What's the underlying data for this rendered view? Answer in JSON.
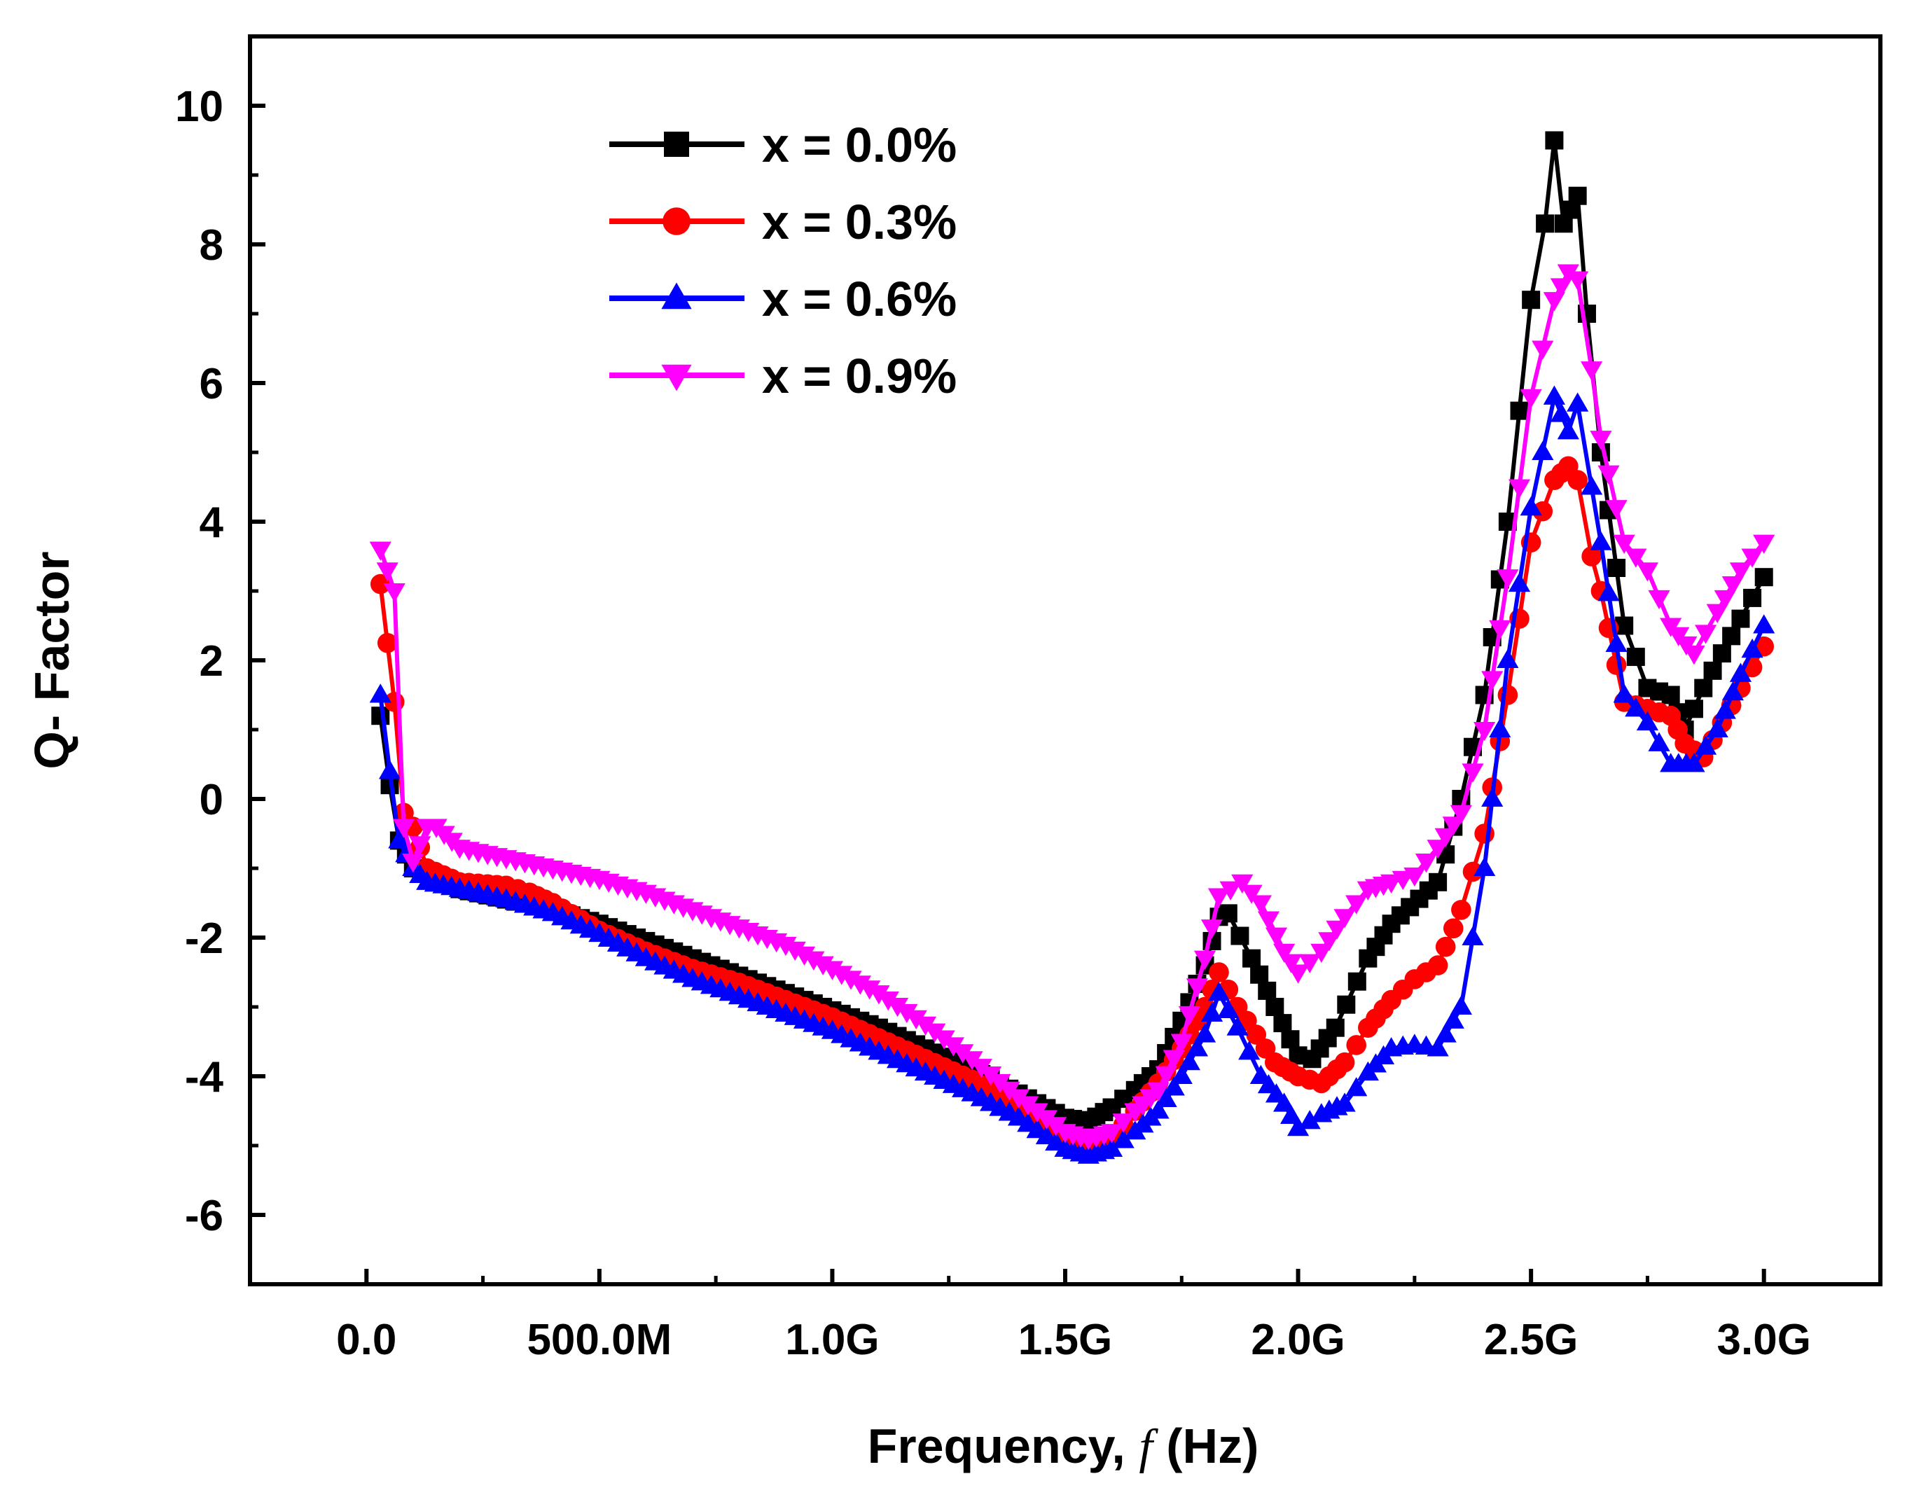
{
  "chart_data": {
    "type": "line",
    "title": "",
    "xlabel": "Frequency, ",
    "xlabel_var": "f",
    "xlabel_unit": " (Hz)",
    "ylabel": "Q- Factor",
    "xlim": [
      -0.25,
      3.25
    ],
    "ylim": [
      -7,
      11
    ],
    "x_ticks": [
      0.0,
      0.5,
      1.0,
      1.5,
      2.0,
      2.5,
      3.0
    ],
    "x_tick_labels": [
      "0.0",
      "500.0M",
      "1.0G",
      "1.5G",
      "2.0G",
      "2.5G",
      "3.0G"
    ],
    "x_unit_note": "x values in GHz",
    "y_ticks": [
      -6,
      -4,
      -2,
      0,
      2,
      4,
      6,
      8,
      10
    ],
    "y_tick_labels": [
      "-6",
      "-4",
      "-2",
      "0",
      "2",
      "4",
      "6",
      "8",
      "10"
    ],
    "grid": false,
    "legend_position": "top-left",
    "series": [
      {
        "name": "x = 0.0%",
        "color": "#000000",
        "marker": "square",
        "points": [
          [
            0.03,
            1.2
          ],
          [
            0.05,
            0.2
          ],
          [
            0.07,
            -0.6
          ],
          [
            0.1,
            -1.0
          ],
          [
            0.15,
            -1.1
          ],
          [
            0.2,
            -1.3
          ],
          [
            0.3,
            -1.45
          ],
          [
            0.4,
            -1.6
          ],
          [
            0.5,
            -1.8
          ],
          [
            0.6,
            -2.05
          ],
          [
            0.7,
            -2.3
          ],
          [
            0.8,
            -2.55
          ],
          [
            0.9,
            -2.8
          ],
          [
            1.0,
            -3.05
          ],
          [
            1.1,
            -3.3
          ],
          [
            1.2,
            -3.6
          ],
          [
            1.3,
            -3.9
          ],
          [
            1.4,
            -4.25
          ],
          [
            1.5,
            -4.6
          ],
          [
            1.55,
            -4.65
          ],
          [
            1.6,
            -4.45
          ],
          [
            1.65,
            -4.2
          ],
          [
            1.7,
            -3.9
          ],
          [
            1.75,
            -3.2
          ],
          [
            1.8,
            -2.4
          ],
          [
            1.83,
            -1.7
          ],
          [
            1.85,
            -1.65
          ],
          [
            1.9,
            -2.3
          ],
          [
            1.95,
            -3.0
          ],
          [
            2.0,
            -3.7
          ],
          [
            2.03,
            -3.75
          ],
          [
            2.08,
            -3.3
          ],
          [
            2.15,
            -2.3
          ],
          [
            2.2,
            -1.8
          ],
          [
            2.3,
            -1.2
          ],
          [
            2.35,
            0.0
          ],
          [
            2.4,
            1.5
          ],
          [
            2.45,
            4.0
          ],
          [
            2.5,
            7.2
          ],
          [
            2.53,
            8.3
          ],
          [
            2.55,
            9.5
          ],
          [
            2.57,
            8.3
          ],
          [
            2.6,
            8.7
          ],
          [
            2.62,
            7.0
          ],
          [
            2.65,
            5.0
          ],
          [
            2.7,
            2.5
          ],
          [
            2.75,
            1.6
          ],
          [
            2.8,
            1.5
          ],
          [
            2.83,
            1.0
          ],
          [
            2.87,
            1.6
          ],
          [
            2.95,
            2.6
          ],
          [
            3.0,
            3.2
          ]
        ]
      },
      {
        "name": "x = 0.3%",
        "color": "#ff0000",
        "marker": "circle",
        "points": [
          [
            0.03,
            3.1
          ],
          [
            0.06,
            1.4
          ],
          [
            0.08,
            -0.2
          ],
          [
            0.1,
            -0.4
          ],
          [
            0.13,
            -1.0
          ],
          [
            0.2,
            -1.2
          ],
          [
            0.3,
            -1.25
          ],
          [
            0.35,
            -1.35
          ],
          [
            0.4,
            -1.5
          ],
          [
            0.5,
            -1.9
          ],
          [
            0.6,
            -2.2
          ],
          [
            0.7,
            -2.45
          ],
          [
            0.8,
            -2.65
          ],
          [
            0.9,
            -2.9
          ],
          [
            1.0,
            -3.15
          ],
          [
            1.1,
            -3.45
          ],
          [
            1.2,
            -3.75
          ],
          [
            1.3,
            -4.05
          ],
          [
            1.4,
            -4.45
          ],
          [
            1.5,
            -4.9
          ],
          [
            1.55,
            -5.0
          ],
          [
            1.6,
            -4.9
          ],
          [
            1.65,
            -4.5
          ],
          [
            1.7,
            -4.1
          ],
          [
            1.75,
            -3.6
          ],
          [
            1.8,
            -3.0
          ],
          [
            1.83,
            -2.5
          ],
          [
            1.87,
            -3.0
          ],
          [
            1.95,
            -3.8
          ],
          [
            2.0,
            -4.0
          ],
          [
            2.05,
            -4.1
          ],
          [
            2.1,
            -3.8
          ],
          [
            2.15,
            -3.3
          ],
          [
            2.2,
            -2.9
          ],
          [
            2.25,
            -2.6
          ],
          [
            2.3,
            -2.4
          ],
          [
            2.35,
            -1.6
          ],
          [
            2.4,
            -0.5
          ],
          [
            2.45,
            1.5
          ],
          [
            2.5,
            3.7
          ],
          [
            2.55,
            4.6
          ],
          [
            2.58,
            4.8
          ],
          [
            2.6,
            4.6
          ],
          [
            2.63,
            3.5
          ],
          [
            2.65,
            3.0
          ],
          [
            2.7,
            1.4
          ],
          [
            2.75,
            1.3
          ],
          [
            2.8,
            1.2
          ],
          [
            2.83,
            0.8
          ],
          [
            2.87,
            0.6
          ],
          [
            2.95,
            1.6
          ],
          [
            3.0,
            2.2
          ]
        ]
      },
      {
        "name": "x = 0.6%",
        "color": "#0000ff",
        "marker": "triangle-up",
        "points": [
          [
            0.03,
            1.5
          ],
          [
            0.05,
            0.4
          ],
          [
            0.07,
            -0.6
          ],
          [
            0.1,
            -1.0
          ],
          [
            0.13,
            -1.2
          ],
          [
            0.2,
            -1.3
          ],
          [
            0.3,
            -1.45
          ],
          [
            0.4,
            -1.65
          ],
          [
            0.5,
            -1.95
          ],
          [
            0.6,
            -2.3
          ],
          [
            0.7,
            -2.6
          ],
          [
            0.8,
            -2.85
          ],
          [
            0.9,
            -3.1
          ],
          [
            1.0,
            -3.35
          ],
          [
            1.1,
            -3.65
          ],
          [
            1.2,
            -3.95
          ],
          [
            1.3,
            -4.25
          ],
          [
            1.4,
            -4.6
          ],
          [
            1.5,
            -5.05
          ],
          [
            1.55,
            -5.15
          ],
          [
            1.6,
            -5.05
          ],
          [
            1.65,
            -4.8
          ],
          [
            1.7,
            -4.5
          ],
          [
            1.75,
            -4.0
          ],
          [
            1.8,
            -3.4
          ],
          [
            1.83,
            -2.8
          ],
          [
            1.87,
            -3.3
          ],
          [
            1.92,
            -4.0
          ],
          [
            1.97,
            -4.4
          ],
          [
            2.0,
            -4.75
          ],
          [
            2.05,
            -4.55
          ],
          [
            2.1,
            -4.4
          ],
          [
            2.15,
            -3.95
          ],
          [
            2.2,
            -3.6
          ],
          [
            2.25,
            -3.55
          ],
          [
            2.3,
            -3.6
          ],
          [
            2.35,
            -3.0
          ],
          [
            2.4,
            -1.0
          ],
          [
            2.45,
            2.0
          ],
          [
            2.5,
            4.2
          ],
          [
            2.55,
            5.8
          ],
          [
            2.58,
            5.3
          ],
          [
            2.6,
            5.7
          ],
          [
            2.63,
            4.5
          ],
          [
            2.65,
            3.7
          ],
          [
            2.7,
            1.5
          ],
          [
            2.75,
            1.1
          ],
          [
            2.8,
            0.5
          ],
          [
            2.85,
            0.5
          ],
          [
            2.9,
            1.0
          ],
          [
            2.95,
            1.8
          ],
          [
            3.0,
            2.5
          ]
        ]
      },
      {
        "name": "x = 0.9%",
        "color": "#ff00ff",
        "marker": "triangle-down",
        "points": [
          [
            0.03,
            3.6
          ],
          [
            0.06,
            3.0
          ],
          [
            0.08,
            -0.4
          ],
          [
            0.1,
            -0.9
          ],
          [
            0.13,
            -0.4
          ],
          [
            0.15,
            -0.4
          ],
          [
            0.2,
            -0.7
          ],
          [
            0.3,
            -0.85
          ],
          [
            0.4,
            -1.0
          ],
          [
            0.5,
            -1.15
          ],
          [
            0.6,
            -1.35
          ],
          [
            0.7,
            -1.6
          ],
          [
            0.8,
            -1.85
          ],
          [
            0.9,
            -2.1
          ],
          [
            1.0,
            -2.45
          ],
          [
            1.1,
            -2.8
          ],
          [
            1.2,
            -3.25
          ],
          [
            1.3,
            -3.75
          ],
          [
            1.4,
            -4.3
          ],
          [
            1.5,
            -4.8
          ],
          [
            1.55,
            -4.9
          ],
          [
            1.6,
            -4.8
          ],
          [
            1.65,
            -4.5
          ],
          [
            1.7,
            -4.2
          ],
          [
            1.75,
            -3.5
          ],
          [
            1.8,
            -2.3
          ],
          [
            1.83,
            -1.4
          ],
          [
            1.88,
            -1.2
          ],
          [
            1.92,
            -1.5
          ],
          [
            1.97,
            -2.2
          ],
          [
            2.0,
            -2.5
          ],
          [
            2.05,
            -2.2
          ],
          [
            2.1,
            -1.7
          ],
          [
            2.15,
            -1.3
          ],
          [
            2.2,
            -1.2
          ],
          [
            2.25,
            -1.1
          ],
          [
            2.3,
            -0.7
          ],
          [
            2.35,
            -0.2
          ],
          [
            2.4,
            1.0
          ],
          [
            2.45,
            3.2
          ],
          [
            2.5,
            5.8
          ],
          [
            2.55,
            7.2
          ],
          [
            2.58,
            7.6
          ],
          [
            2.6,
            7.5
          ],
          [
            2.63,
            6.2
          ],
          [
            2.65,
            5.2
          ],
          [
            2.7,
            3.7
          ],
          [
            2.75,
            3.3
          ],
          [
            2.8,
            2.5
          ],
          [
            2.85,
            2.1
          ],
          [
            2.9,
            2.7
          ],
          [
            2.95,
            3.3
          ],
          [
            3.0,
            3.7
          ]
        ]
      }
    ]
  }
}
